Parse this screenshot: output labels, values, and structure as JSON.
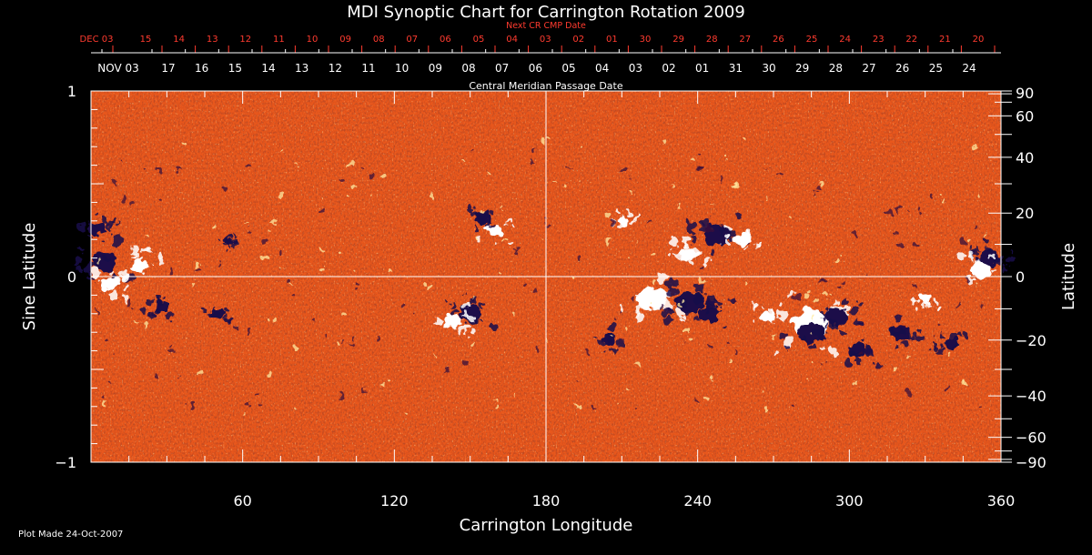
{
  "chart_data": {
    "type": "heatmap",
    "title": "MDI Synoptic Chart for Carrington Rotation 2009",
    "xlabel": "Carrington Longitude",
    "ylabel_left": "Sine Latitude",
    "ylabel_right": "Latitude",
    "top_axis_label": "Central Meridian Passage Date",
    "next_cr_label": "Next CR CMP Date",
    "footer": "Plot Made 24-Oct-2007",
    "xlim": [
      0,
      360
    ],
    "ylim": [
      -1,
      1
    ],
    "x_ticks": [
      60,
      120,
      180,
      240,
      300,
      360
    ],
    "y_ticks_left": [
      "1",
      "0",
      "−1"
    ],
    "y_ticks_left_values": [
      1,
      0,
      -1
    ],
    "lat_ticks": [
      90,
      60,
      40,
      20,
      0,
      -20,
      -40,
      -60,
      -90
    ],
    "lat_tick_labels": [
      "90",
      "60",
      "40",
      "20",
      "0",
      "−20",
      "−40",
      "−60",
      "−90"
    ],
    "cmp_dates": [
      "NOV 03",
      "17",
      "16",
      "15",
      "14",
      "13",
      "12",
      "11",
      "10",
      "09",
      "08",
      "07",
      "06",
      "05",
      "04",
      "03",
      "02",
      "01",
      "31",
      "30",
      "29",
      "28",
      "27",
      "26",
      "25",
      "24"
    ],
    "next_cr_dates": [
      "DEC 03",
      "15",
      "14",
      "13",
      "12",
      "11",
      "10",
      "09",
      "08",
      "07",
      "06",
      "05",
      "04",
      "03",
      "02",
      "01",
      "30",
      "29",
      "28",
      "27",
      "26",
      "25",
      "24",
      "23",
      "22",
      "21",
      "20"
    ],
    "colors": {
      "background": "#e8571c",
      "positive": "#ffffff",
      "negative": "#1a0b4a",
      "next_cr": "#ff3b2f"
    },
    "active_regions": [
      {
        "lon": 5,
        "sinlat": 0.08,
        "polarity": "negative",
        "size": 1.4
      },
      {
        "lon": 2,
        "sinlat": 0.26,
        "polarity": "negative",
        "size": 0.9
      },
      {
        "lon": 20,
        "sinlat": 0.06,
        "polarity": "positive",
        "size": 1.0
      },
      {
        "lon": 8,
        "sinlat": -0.04,
        "polarity": "positive",
        "size": 0.9
      },
      {
        "lon": 28,
        "sinlat": -0.16,
        "polarity": "negative",
        "size": 0.9
      },
      {
        "lon": 50,
        "sinlat": -0.2,
        "polarity": "negative",
        "size": 0.7
      },
      {
        "lon": 55,
        "sinlat": 0.18,
        "polarity": "negative",
        "size": 0.6
      },
      {
        "lon": 160,
        "sinlat": 0.24,
        "polarity": "positive",
        "size": 0.8
      },
      {
        "lon": 155,
        "sinlat": 0.32,
        "polarity": "negative",
        "size": 0.8
      },
      {
        "lon": 150,
        "sinlat": -0.2,
        "polarity": "negative",
        "size": 1.2
      },
      {
        "lon": 143,
        "sinlat": -0.24,
        "polarity": "positive",
        "size": 1.0
      },
      {
        "lon": 248,
        "sinlat": 0.22,
        "polarity": "negative",
        "size": 1.5
      },
      {
        "lon": 258,
        "sinlat": 0.2,
        "polarity": "positive",
        "size": 0.9
      },
      {
        "lon": 236,
        "sinlat": 0.12,
        "polarity": "positive",
        "size": 1.0
      },
      {
        "lon": 222,
        "sinlat": -0.12,
        "polarity": "positive",
        "size": 1.6
      },
      {
        "lon": 237,
        "sinlat": -0.14,
        "polarity": "negative",
        "size": 1.5
      },
      {
        "lon": 245,
        "sinlat": -0.2,
        "polarity": "negative",
        "size": 1.1
      },
      {
        "lon": 285,
        "sinlat": -0.25,
        "polarity": "positive",
        "size": 2.0
      },
      {
        "lon": 285,
        "sinlat": -0.3,
        "polarity": "negative",
        "size": 1.4
      },
      {
        "lon": 295,
        "sinlat": -0.22,
        "polarity": "negative",
        "size": 1.2
      },
      {
        "lon": 303,
        "sinlat": -0.4,
        "polarity": "negative",
        "size": 1.0
      },
      {
        "lon": 268,
        "sinlat": -0.22,
        "polarity": "positive",
        "size": 0.9
      },
      {
        "lon": 355,
        "sinlat": 0.1,
        "polarity": "negative",
        "size": 1.2
      },
      {
        "lon": 352,
        "sinlat": 0.04,
        "polarity": "positive",
        "size": 1.1
      },
      {
        "lon": 330,
        "sinlat": -0.12,
        "polarity": "positive",
        "size": 0.7
      },
      {
        "lon": 320,
        "sinlat": -0.3,
        "polarity": "negative",
        "size": 1.0
      },
      {
        "lon": 340,
        "sinlat": -0.36,
        "polarity": "negative",
        "size": 0.8
      },
      {
        "lon": 205,
        "sinlat": -0.34,
        "polarity": "negative",
        "size": 0.8
      },
      {
        "lon": 210,
        "sinlat": 0.3,
        "polarity": "positive",
        "size": 0.7
      }
    ]
  }
}
